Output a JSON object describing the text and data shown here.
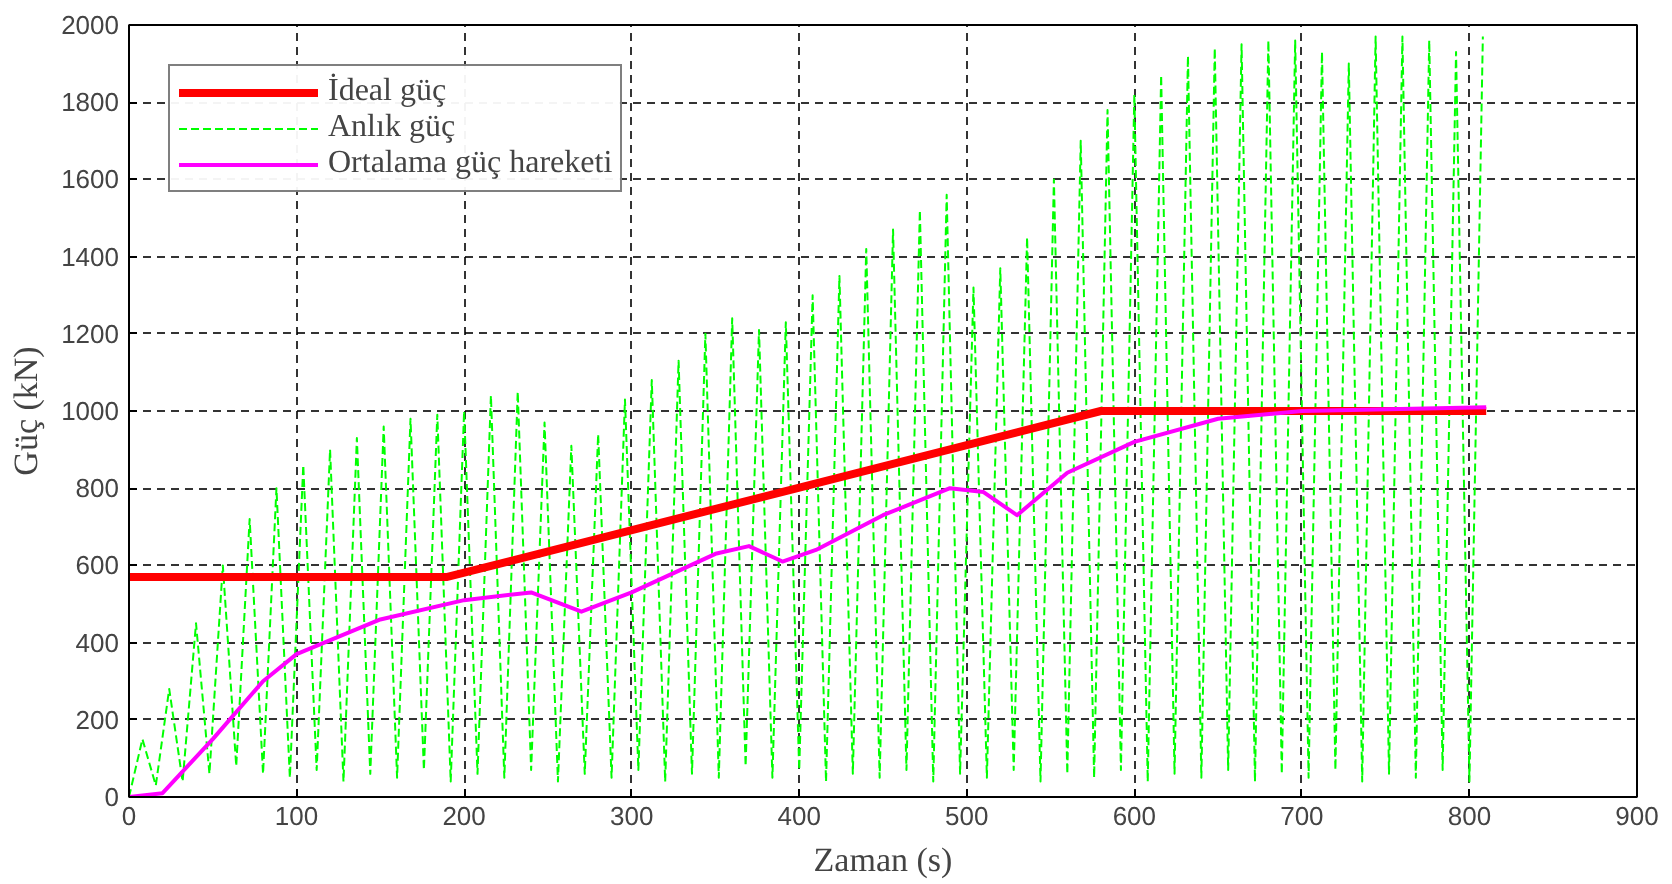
{
  "chart_data": {
    "type": "line",
    "xlabel": "Zaman (s)",
    "ylabel": "Güç (kN)",
    "xlim": [
      0,
      900
    ],
    "xticks": [
      0,
      100,
      200,
      300,
      400,
      500,
      600,
      700,
      800,
      900
    ],
    "ylim": [
      0,
      2000
    ],
    "yticks": [
      0,
      200,
      400,
      600,
      800,
      1000,
      1200,
      1400,
      1600,
      1800,
      2000
    ],
    "grid": true,
    "legend": "top left",
    "series": [
      {
        "name": "Anlık güç",
        "color": "#00ff00",
        "line_style": "dashed",
        "x": [
          0,
          8,
          16,
          24,
          32,
          40,
          48,
          56,
          64,
          72,
          80,
          88,
          96,
          104,
          112,
          120,
          128,
          136,
          144,
          152,
          160,
          168,
          176,
          184,
          192,
          200,
          208,
          216,
          224,
          232,
          240,
          248,
          256,
          264,
          272,
          280,
          288,
          296,
          304,
          312,
          320,
          328,
          336,
          344,
          352,
          360,
          368,
          376,
          384,
          392,
          400,
          408,
          416,
          424,
          432,
          440,
          448,
          456,
          464,
          472,
          480,
          488,
          496,
          504,
          512,
          520,
          528,
          536,
          544,
          552,
          560,
          568,
          576,
          584,
          592,
          600,
          608,
          616,
          624,
          632,
          640,
          648,
          656,
          664,
          672,
          680,
          688,
          696,
          704,
          712,
          720,
          728,
          736,
          744,
          752,
          760,
          768,
          776,
          784,
          792,
          800,
          808
        ],
        "values": [
          0,
          150,
          30,
          280,
          40,
          450,
          60,
          600,
          80,
          720,
          60,
          800,
          50,
          860,
          70,
          900,
          40,
          930,
          60,
          960,
          50,
          980,
          70,
          990,
          40,
          1000,
          60,
          1040,
          50,
          1050,
          70,
          970,
          40,
          910,
          60,
          940,
          50,
          1030,
          70,
          1080,
          40,
          1130,
          60,
          1200,
          50,
          1240,
          80,
          1210,
          50,
          1230,
          70,
          1300,
          40,
          1350,
          60,
          1420,
          50,
          1470,
          70,
          1520,
          40,
          1560,
          60,
          1320,
          50,
          1370,
          70,
          1450,
          40,
          1600,
          60,
          1700,
          50,
          1780,
          70,
          1820,
          40,
          1870,
          60,
          1920,
          50,
          1940,
          70,
          1950,
          40,
          1960,
          60,
          1960,
          50,
          1930,
          70,
          1900,
          40,
          1970,
          60,
          1970,
          50,
          1960,
          70,
          1930,
          40,
          1970
        ]
      },
      {
        "name": "İdeal güç",
        "color": "#ff0000",
        "line_style": "solid",
        "x": [
          0,
          190,
          580,
          810
        ],
        "values": [
          570,
          570,
          1000,
          1000
        ]
      },
      {
        "name": "Ortalama güç hareketi",
        "color": "#ff00ff",
        "line_style": "solid",
        "x": [
          0,
          20,
          50,
          80,
          100,
          150,
          200,
          240,
          270,
          300,
          350,
          370,
          390,
          410,
          450,
          490,
          510,
          530,
          560,
          600,
          650,
          700,
          810
        ],
        "values": [
          0,
          10,
          150,
          300,
          370,
          460,
          510,
          530,
          480,
          530,
          630,
          650,
          610,
          640,
          730,
          800,
          790,
          730,
          840,
          920,
          980,
          1000,
          1010
        ]
      }
    ]
  }
}
